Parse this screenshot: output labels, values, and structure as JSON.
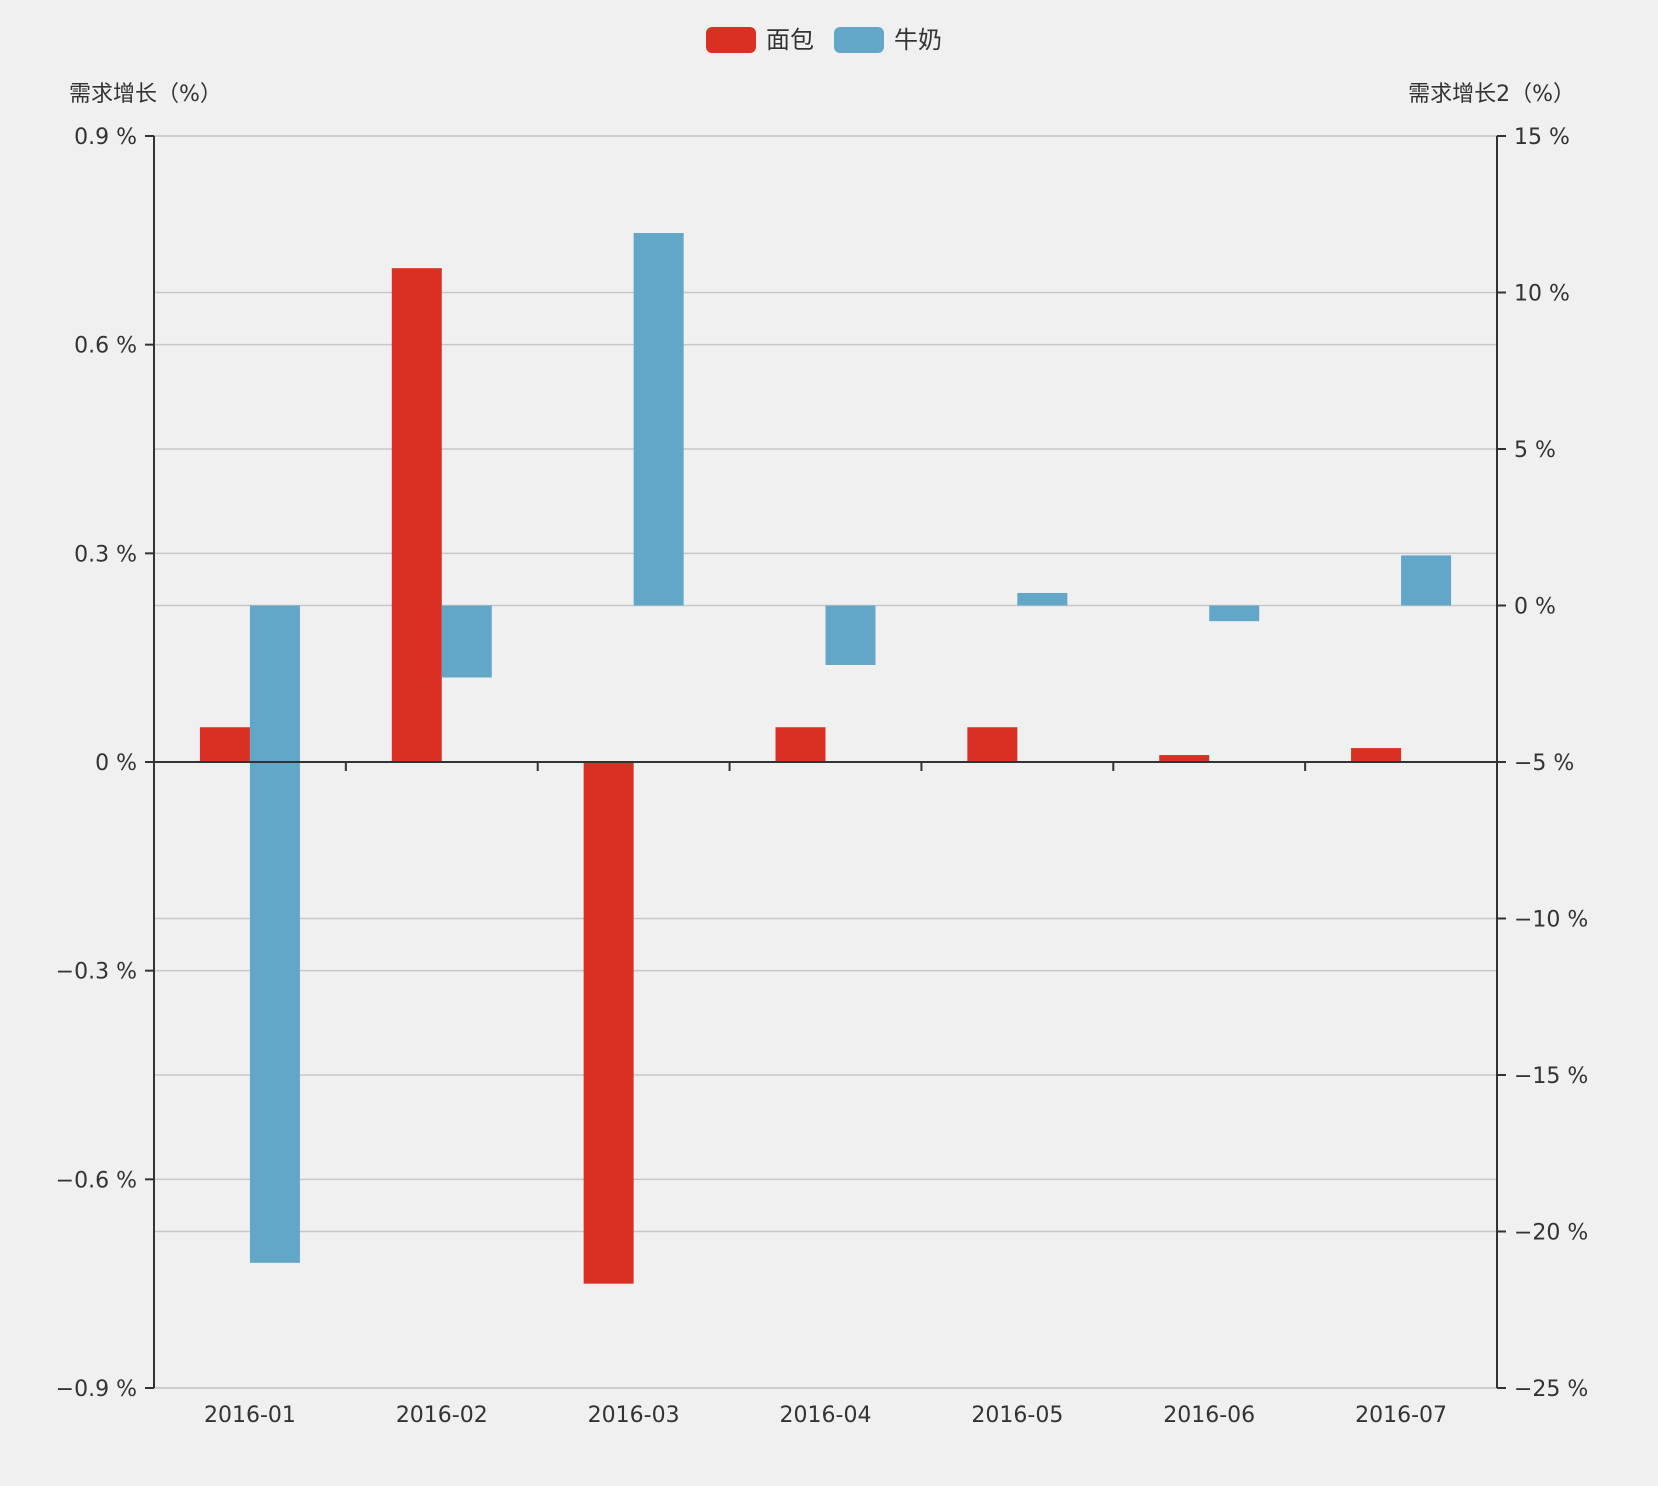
{
  "chart_data": {
    "type": "bar",
    "title": "",
    "categories": [
      "2016-01",
      "2016-02",
      "2016-03",
      "2016-04",
      "2016-05",
      "2016-06",
      "2016-07"
    ],
    "series": [
      {
        "name": "面包",
        "axis": "left",
        "color": "#d93023",
        "values": [
          0.05,
          0.71,
          -0.75,
          0.05,
          0.05,
          0.01,
          0.02
        ]
      },
      {
        "name": "牛奶",
        "axis": "right",
        "color": "#62a6c8",
        "values": [
          -21.0,
          -2.3,
          11.9,
          -1.9,
          0.4,
          -0.5,
          1.6
        ]
      }
    ],
    "y_left": {
      "label": "需求增长（%）",
      "min": -0.9,
      "max": 0.9,
      "ticks": [
        -0.9,
        -0.6,
        -0.3,
        0,
        0.3,
        0.6,
        0.9
      ],
      "tick_labels": [
        "−0.9 %",
        "−0.6 %",
        "−0.3 %",
        "0 %",
        "0.3 %",
        "0.6 %",
        "0.9 %"
      ]
    },
    "y_right": {
      "label": "需求增长2（%）",
      "min": -25,
      "max": 15,
      "ticks": [
        -25,
        -20,
        -15,
        -10,
        -5,
        0,
        5,
        10,
        15
      ],
      "tick_labels": [
        "−25 %",
        "−20 %",
        "−15 %",
        "−10 %",
        "−5 %",
        "0 %",
        "5 %",
        "10 %",
        "15 %"
      ]
    },
    "grid": true,
    "legend_position": "top-center"
  }
}
